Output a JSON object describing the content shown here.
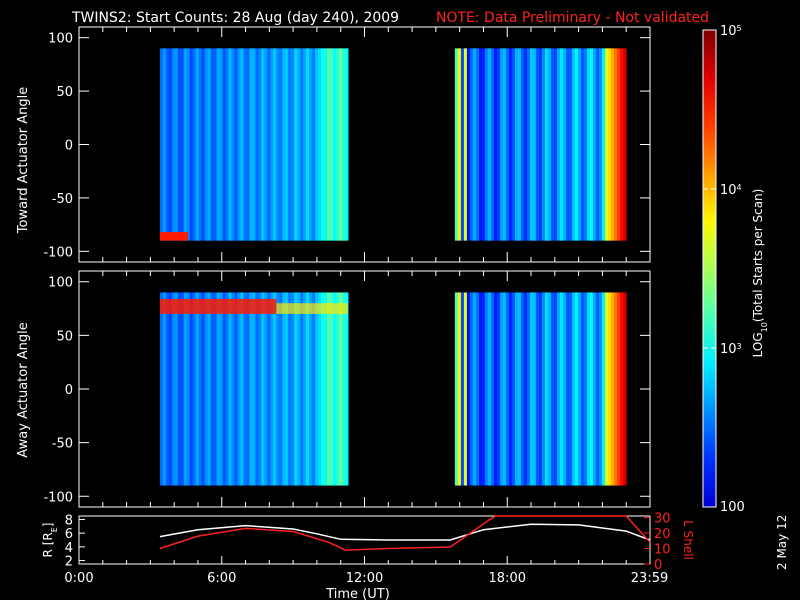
{
  "title": "TWINS2: Start Counts: 28 Aug (day 240), 2009",
  "note": "NOTE: Data Preliminary - Not validated",
  "date_stamp": "2 May 12",
  "colorbar": {
    "label": "LOG10(Total Starts per Scan)",
    "label_base": "LOG",
    "label_sub": "10",
    "label_rest": "(Total Starts per Scan)",
    "scale": "log",
    "range": [
      100,
      100000
    ],
    "ticks": [
      {
        "value": 100,
        "label": "100"
      },
      {
        "value": 1000,
        "label": "10",
        "sup": "3"
      },
      {
        "value": 10000,
        "label": "10",
        "sup": "4"
      },
      {
        "value": 100000,
        "label": "10",
        "sup": "5"
      }
    ]
  },
  "time_axis": {
    "label": "Time (UT)",
    "ticks": [
      "0:00",
      "6:00",
      "12:00",
      "18:00",
      "23:59"
    ],
    "tick_hours": [
      0,
      6,
      12,
      18,
      23.98
    ],
    "range_hours": [
      0,
      24
    ]
  },
  "chart_data": [
    {
      "type": "heatmap",
      "ylabel": "Toward Actuator Angle",
      "ylim": [
        -110,
        110
      ],
      "yticks": [
        100,
        50,
        0,
        -50,
        -100
      ],
      "data_blocks_hours": [
        [
          3.4,
          11.3
        ],
        [
          15.8,
          24.0
        ]
      ],
      "angle_range": [
        -90,
        90
      ]
    },
    {
      "type": "heatmap",
      "ylabel": "Away Actuator Angle",
      "ylim": [
        -110,
        110
      ],
      "yticks": [
        100,
        50,
        0,
        -50,
        -100
      ],
      "data_blocks_hours": [
        [
          3.4,
          11.3
        ],
        [
          15.8,
          24.0
        ]
      ],
      "angle_range": [
        -90,
        90
      ]
    },
    {
      "type": "line",
      "ylabel_left": "R [RE]",
      "ylabel_left_base": "R [R",
      "ylabel_left_sub": "E",
      "ylabel_left_end": "]",
      "ylabel_right": "L Shell",
      "left_ticks": [
        2,
        4,
        6,
        8
      ],
      "left_range": [
        1.5,
        8.5
      ],
      "right_ticks": [
        0,
        10,
        20,
        30
      ],
      "right_range": [
        0,
        31
      ],
      "series": [
        {
          "color": "#ffffff",
          "axis": "left",
          "x": [
            3.4,
            5,
            7,
            9,
            10,
            11,
            13,
            15.6,
            17,
            19,
            21,
            23,
            24
          ],
          "y": [
            5.5,
            6.5,
            7.1,
            6.6,
            5.9,
            5.1,
            5.0,
            5.0,
            6.5,
            7.3,
            7.2,
            6.3,
            5.0
          ]
        },
        {
          "color": "#ff2020",
          "axis": "right",
          "x": [
            3.4,
            5,
            7,
            9,
            10.5,
            11.2,
            13,
            15.6,
            17.2,
            17.5,
            23.0,
            24
          ],
          "y": [
            10,
            18,
            23,
            21,
            14,
            9,
            10,
            11,
            28,
            31,
            31,
            14
          ]
        }
      ]
    }
  ]
}
